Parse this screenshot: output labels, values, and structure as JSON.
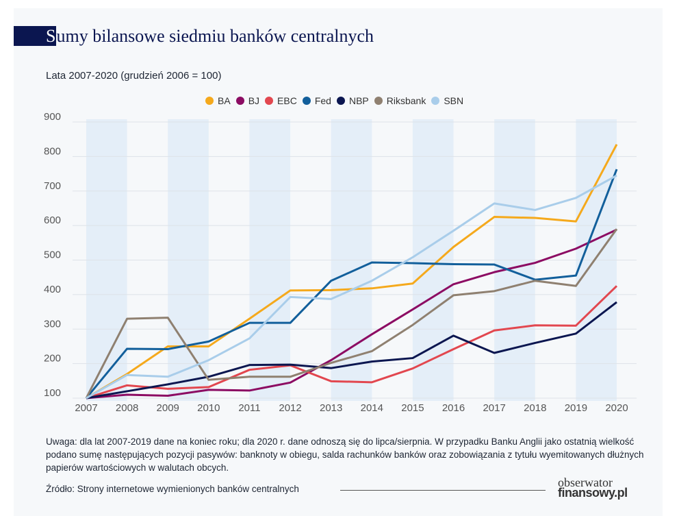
{
  "title": "Sumy bilansowe siedmiu banków centralnych",
  "title_first": "S",
  "title_rest": "umy bilansowe siedmiu banków centralnych",
  "subtitle": "Lata 2007-2020 (grudzień 2006 = 100)",
  "note": "Uwaga: dla lat 2007-2019 dane na koniec roku; dla 2020 r. dane odnoszą się do lipca/sierpnia. W przypadku Banku Anglii jako ostatnią wielkość podano sumę następujących pozycji pasywów: banknoty w obiegu, salda rachunków banków oraz zobowiązania z tytułu wyemitowanych dłużnych papierów wartościowych w walutach obcych.",
  "source": "Źródło: Strony internetowe wymienionych banków centralnych",
  "logo": {
    "line1": "obserwator",
    "line2": "finansowy.pl"
  },
  "chart_data": {
    "type": "line",
    "title": "Sumy bilansowe siedmiu banków centralnych",
    "subtitle": "Lata 2007-2020 (grudzień 2006 = 100)",
    "x": [
      "2007",
      "2008",
      "2009",
      "2010",
      "2011",
      "2012",
      "2013",
      "2014",
      "2015",
      "2016",
      "2017",
      "2018",
      "2019",
      "2020"
    ],
    "yticks": [
      100,
      200,
      300,
      400,
      500,
      600,
      700,
      800,
      900
    ],
    "ylim": [
      100,
      900
    ],
    "grid": true,
    "legend_position": "top-center",
    "series": [
      {
        "name": "BA",
        "color": "#f5a91c",
        "values": [
          100,
          170,
          250,
          250,
          330,
          412,
          413,
          418,
          432,
          538,
          625,
          622,
          612,
          835
        ]
      },
      {
        "name": "BJ",
        "color": "#8c0c63",
        "values": [
          100,
          110,
          107,
          124,
          122,
          145,
          210,
          285,
          357,
          430,
          465,
          492,
          533,
          588
        ]
      },
      {
        "name": "EBC",
        "color": "#e2474f",
        "values": [
          100,
          137,
          127,
          132,
          182,
          195,
          149,
          146,
          186,
          242,
          296,
          311,
          310,
          425
        ]
      },
      {
        "name": "Fed",
        "color": "#125f9b",
        "values": [
          100,
          243,
          242,
          264,
          318,
          318,
          440,
          493,
          491,
          488,
          487,
          443,
          455,
          763
        ]
      },
      {
        "name": "NBP",
        "color": "#0b1650",
        "values": [
          100,
          120,
          140,
          162,
          196,
          197,
          187,
          206,
          216,
          281,
          231,
          260,
          287,
          378
        ]
      },
      {
        "name": "Riksbank",
        "color": "#8f8070",
        "values": [
          100,
          330,
          333,
          153,
          162,
          162,
          202,
          236,
          312,
          398,
          410,
          440,
          425,
          590
        ]
      },
      {
        "name": "SBN",
        "color": "#a9cdea",
        "values": [
          100,
          167,
          162,
          210,
          273,
          393,
          387,
          440,
          508,
          585,
          664,
          645,
          680,
          745
        ]
      }
    ]
  }
}
